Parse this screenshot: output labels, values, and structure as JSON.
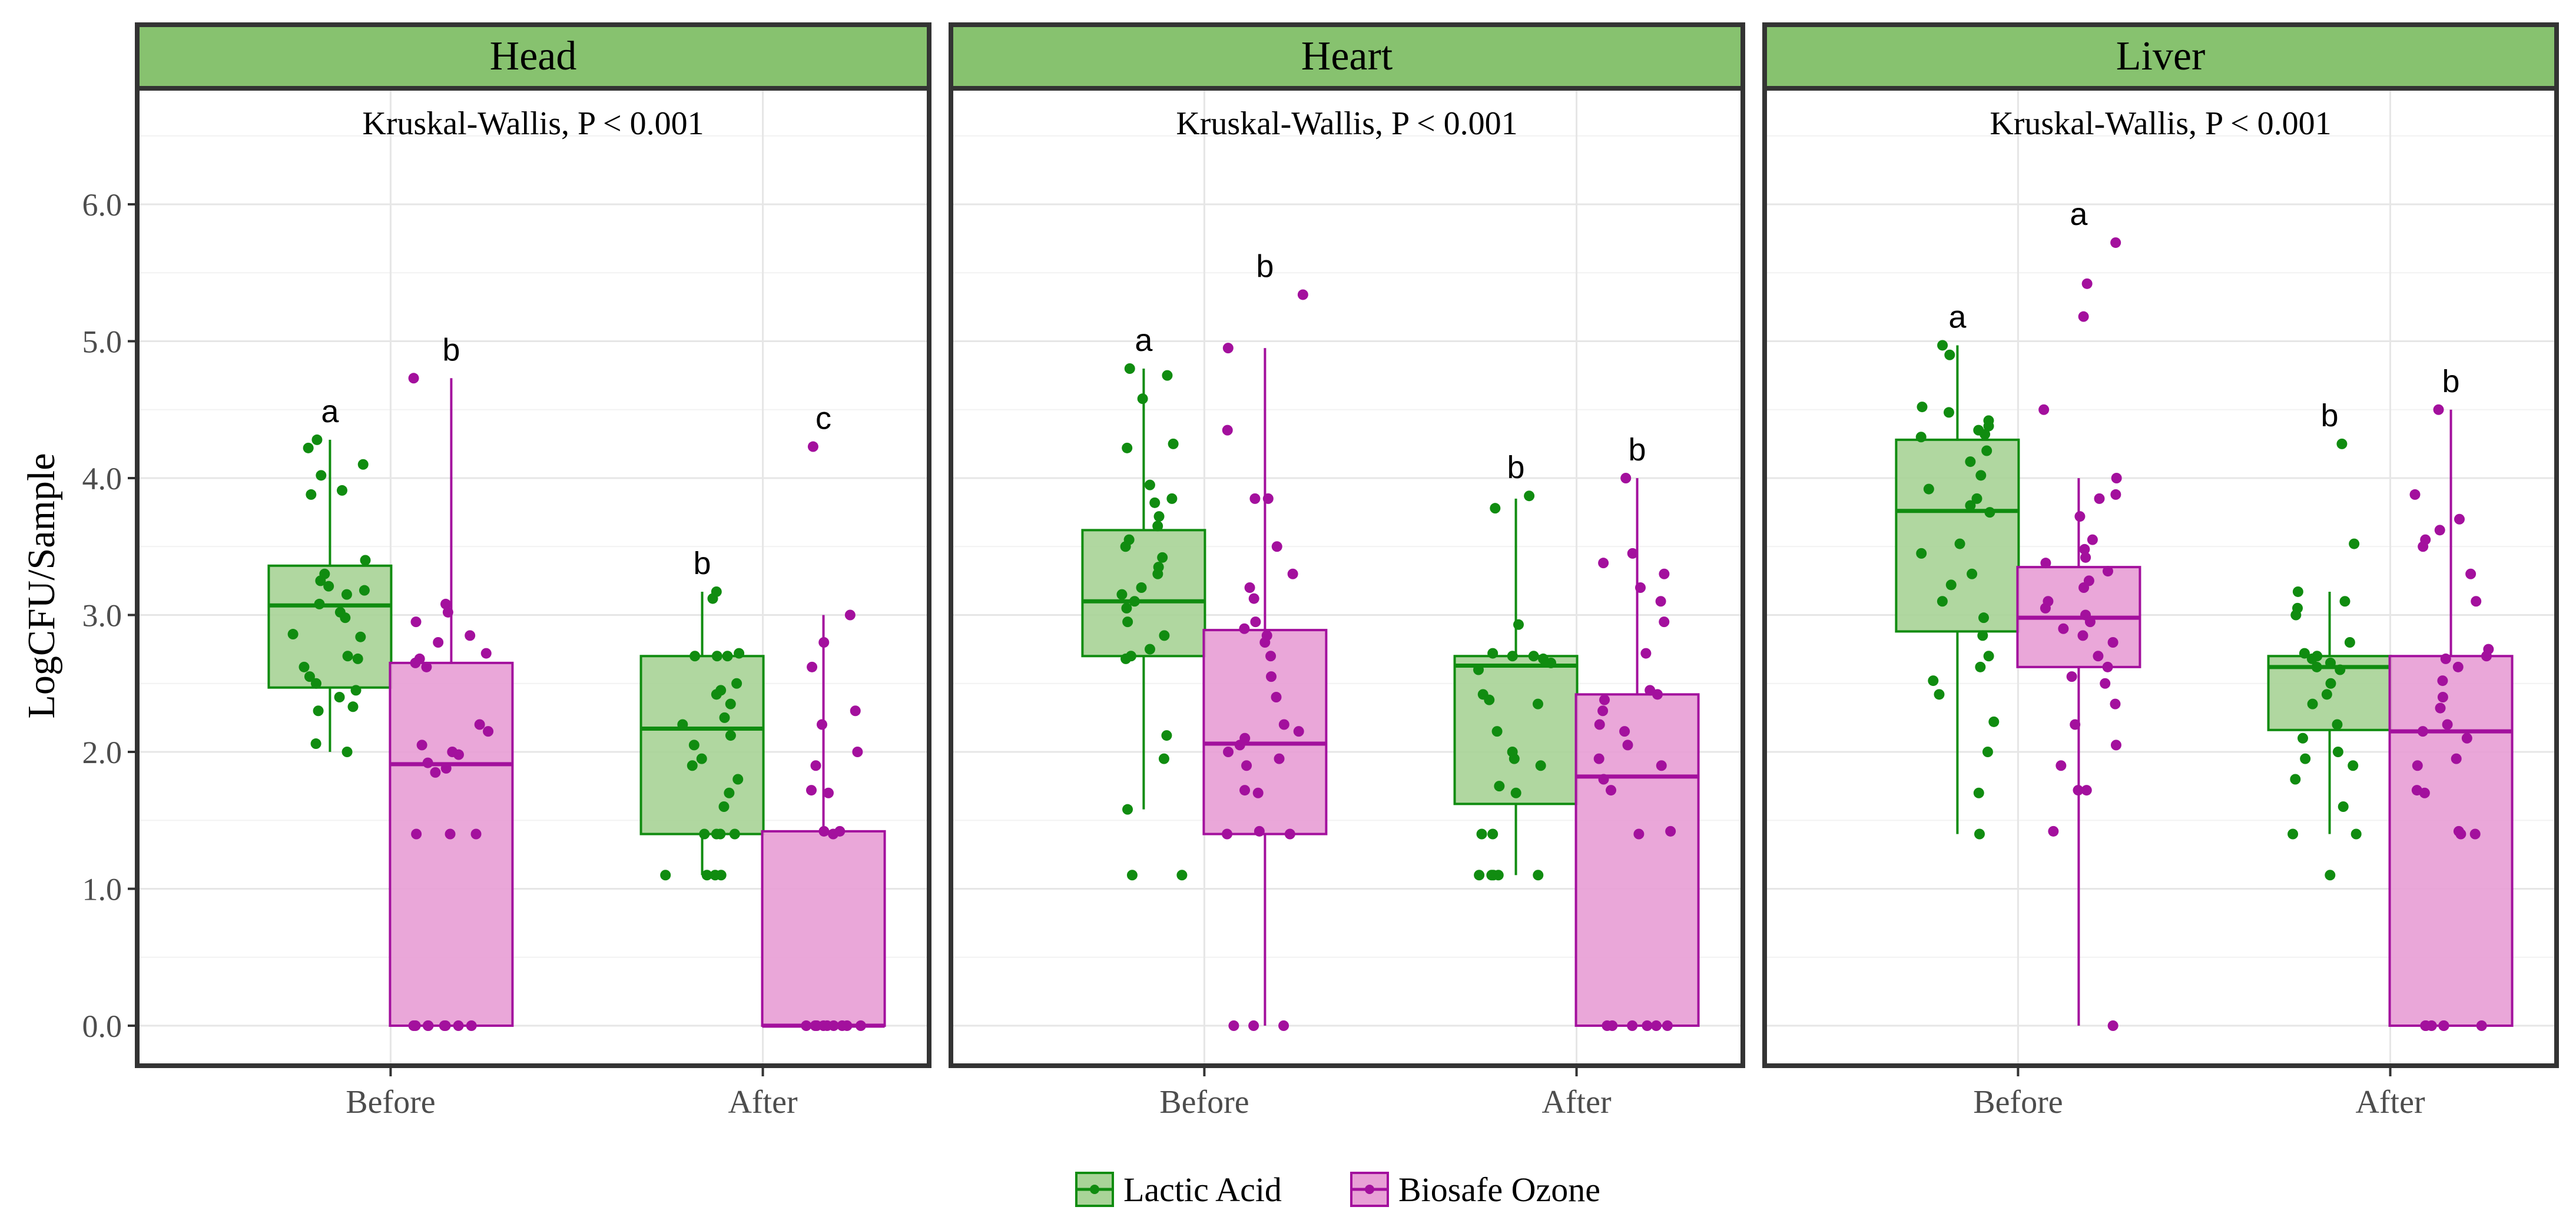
{
  "chart_data": {
    "type": "box",
    "ylabel": "LogCFU/Sample",
    "xlabel": "",
    "ylim": [
      -0.3,
      7.0
    ],
    "yticks": [
      0.0,
      1.0,
      2.0,
      3.0,
      4.0,
      5.0,
      6.0
    ],
    "ytick_labels": [
      "0.0",
      "1.0",
      "2.0",
      "3.0",
      "4.0",
      "5.0",
      "6.0"
    ],
    "categories": [
      "Before",
      "After"
    ],
    "grid": true,
    "legend": {
      "placement": "bottom",
      "entries": [
        {
          "name": "Lactic Acid",
          "color": "#108c10",
          "fill": "#a9d498"
        },
        {
          "name": "Biosafe Ozone",
          "color": "#a3109d",
          "fill": "#e8a0d6"
        }
      ]
    },
    "colors": {
      "strip_fill": "#87c26f",
      "panel_border": "#333333",
      "grid": "#e6e6e6"
    },
    "panels": [
      {
        "strip": "Head",
        "test_label": "Kruskal-Wallis, P < 0.001",
        "boxes": [
          {
            "category": "Before",
            "series": "Lactic Acid",
            "letter": "a",
            "min": 2.0,
            "q1": 2.47,
            "median": 3.07,
            "q3": 3.36,
            "max": 4.28,
            "points": [
              4.28,
              4.22,
              4.1,
              4.02,
              3.91,
              3.88,
              3.4,
              3.3,
              3.25,
              3.21,
              3.18,
              3.15,
              3.08,
              3.02,
              2.98,
              2.86,
              2.84,
              2.7,
              2.68,
              2.62,
              2.55,
              2.5,
              2.45,
              2.4,
              2.33,
              2.3,
              2.06,
              2.0
            ]
          },
          {
            "category": "Before",
            "series": "Biosafe Ozone",
            "letter": "b",
            "min": 0.0,
            "q1": 0.0,
            "median": 1.91,
            "q3": 2.65,
            "max": 4.73,
            "points": [
              4.73,
              3.08,
              3.02,
              2.95,
              2.85,
              2.8,
              2.72,
              2.68,
              2.65,
              2.62,
              2.2,
              2.15,
              2.05,
              2.0,
              1.98,
              1.92,
              1.88,
              1.85,
              1.4,
              1.4,
              1.4,
              0.0,
              0.0,
              0.0,
              0.0,
              0.0,
              0.0,
              0.0,
              0.0
            ]
          },
          {
            "category": "After",
            "series": "Lactic Acid",
            "letter": "b",
            "min": 1.1,
            "q1": 1.4,
            "median": 2.17,
            "q3": 2.7,
            "max": 3.17,
            "points": [
              3.17,
              3.12,
              2.72,
              2.7,
              2.7,
              2.7,
              2.5,
              2.45,
              2.42,
              2.35,
              2.25,
              2.2,
              2.12,
              2.05,
              1.95,
              1.9,
              1.8,
              1.7,
              1.6,
              1.4,
              1.4,
              1.4,
              1.4,
              1.1,
              1.1,
              1.1,
              1.1
            ]
          },
          {
            "category": "After",
            "series": "Biosafe Ozone",
            "letter": "c",
            "min": 0.0,
            "q1": 0.0,
            "median": 0.0,
            "q3": 1.42,
            "max": 3.0,
            "points": [
              4.23,
              3.0,
              2.8,
              2.62,
              2.3,
              2.2,
              2.0,
              1.9,
              1.72,
              1.7,
              1.42,
              1.42,
              1.4,
              0.0,
              0.0,
              0.0,
              0.0,
              0.0,
              0.0,
              0.0,
              0.0,
              0.0
            ]
          }
        ]
      },
      {
        "strip": "Heart",
        "test_label": "Kruskal-Wallis, P < 0.001",
        "boxes": [
          {
            "category": "Before",
            "series": "Lactic Acid",
            "letter": "a",
            "min": 1.58,
            "q1": 2.7,
            "median": 3.1,
            "q3": 3.62,
            "max": 4.8,
            "points": [
              4.8,
              4.75,
              4.58,
              4.25,
              4.22,
              3.95,
              3.85,
              3.82,
              3.72,
              3.65,
              3.55,
              3.5,
              3.42,
              3.35,
              3.3,
              3.2,
              3.15,
              3.1,
              3.05,
              2.95,
              2.85,
              2.75,
              2.7,
              2.68,
              2.12,
              1.95,
              1.58,
              1.1,
              1.1
            ]
          },
          {
            "category": "Before",
            "series": "Biosafe Ozone",
            "letter": "b",
            "min": 0.0,
            "q1": 1.4,
            "median": 2.06,
            "q3": 2.89,
            "max": 4.95,
            "points": [
              5.34,
              4.95,
              4.35,
              3.85,
              3.85,
              3.5,
              3.3,
              3.2,
              3.12,
              2.95,
              2.9,
              2.85,
              2.8,
              2.7,
              2.55,
              2.4,
              2.2,
              2.15,
              2.1,
              2.05,
              2.0,
              1.95,
              1.9,
              1.72,
              1.7,
              1.42,
              1.4,
              1.4,
              0.0,
              0.0,
              0.0
            ]
          },
          {
            "category": "After",
            "series": "Lactic Acid",
            "letter": "b",
            "min": 1.1,
            "q1": 1.62,
            "median": 2.63,
            "q3": 2.7,
            "max": 3.85,
            "points": [
              3.87,
              3.78,
              2.93,
              2.72,
              2.7,
              2.7,
              2.68,
              2.65,
              2.6,
              2.42,
              2.38,
              2.35,
              2.15,
              2.0,
              1.95,
              1.9,
              1.75,
              1.7,
              1.4,
              1.4,
              1.1,
              1.1,
              1.1,
              1.1,
              1.1
            ]
          },
          {
            "category": "After",
            "series": "Biosafe Ozone",
            "letter": "b",
            "min": 0.0,
            "q1": 0.0,
            "median": 1.82,
            "q3": 2.42,
            "max": 4.0,
            "points": [
              4.0,
              3.45,
              3.38,
              3.3,
              3.2,
              3.1,
              2.95,
              2.72,
              2.45,
              2.42,
              2.38,
              2.3,
              2.2,
              2.15,
              2.05,
              1.95,
              1.9,
              1.8,
              1.72,
              1.42,
              1.4,
              0.0,
              0.0,
              0.0,
              0.0,
              0.0,
              0.0
            ]
          }
        ]
      },
      {
        "strip": "Liver",
        "test_label": "Kruskal-Wallis, P < 0.001",
        "boxes": [
          {
            "category": "Before",
            "series": "Lactic Acid",
            "letter": "a",
            "min": 1.4,
            "q1": 2.88,
            "median": 3.76,
            "q3": 4.28,
            "max": 4.97,
            "points": [
              4.97,
              4.9,
              4.52,
              4.48,
              4.42,
              4.38,
              4.35,
              4.32,
              4.3,
              4.2,
              4.12,
              4.02,
              3.92,
              3.85,
              3.8,
              3.75,
              3.52,
              3.45,
              3.3,
              3.22,
              3.1,
              2.98,
              2.85,
              2.7,
              2.62,
              2.52,
              2.42,
              2.22,
              2.0,
              1.7,
              1.4
            ]
          },
          {
            "category": "Before",
            "series": "Biosafe Ozone",
            "letter": "a",
            "min": 0.0,
            "q1": 2.62,
            "median": 2.98,
            "q3": 3.35,
            "max": 4.0,
            "points": [
              5.72,
              5.42,
              5.18,
              4.5,
              4.0,
              3.88,
              3.85,
              3.72,
              3.55,
              3.48,
              3.42,
              3.38,
              3.32,
              3.25,
              3.2,
              3.1,
              3.05,
              3.0,
              2.95,
              2.9,
              2.85,
              2.8,
              2.7,
              2.62,
              2.55,
              2.5,
              2.35,
              2.2,
              2.05,
              1.9,
              1.72,
              1.72,
              1.42,
              0.0
            ]
          },
          {
            "category": "After",
            "series": "Lactic Acid",
            "letter": "b",
            "min": 1.4,
            "q1": 2.16,
            "median": 2.62,
            "q3": 2.7,
            "max": 3.17,
            "points": [
              4.25,
              3.52,
              3.17,
              3.1,
              3.05,
              3.0,
              2.8,
              2.72,
              2.7,
              2.68,
              2.65,
              2.62,
              2.6,
              2.5,
              2.42,
              2.35,
              2.2,
              2.1,
              2.0,
              1.95,
              1.9,
              1.8,
              1.6,
              1.4,
              1.4,
              1.1
            ]
          },
          {
            "category": "After",
            "series": "Biosafe Ozone",
            "letter": "b",
            "min": 0.0,
            "q1": 0.0,
            "median": 2.15,
            "q3": 2.7,
            "max": 4.5,
            "points": [
              4.5,
              3.88,
              3.7,
              3.62,
              3.55,
              3.5,
              3.3,
              3.1,
              2.75,
              2.7,
              2.68,
              2.62,
              2.52,
              2.4,
              2.32,
              2.2,
              2.15,
              2.1,
              1.95,
              1.9,
              1.72,
              1.7,
              1.42,
              1.4,
              1.4,
              0.0,
              0.0,
              0.0,
              0.0,
              0.0,
              0.0
            ]
          }
        ]
      }
    ]
  }
}
